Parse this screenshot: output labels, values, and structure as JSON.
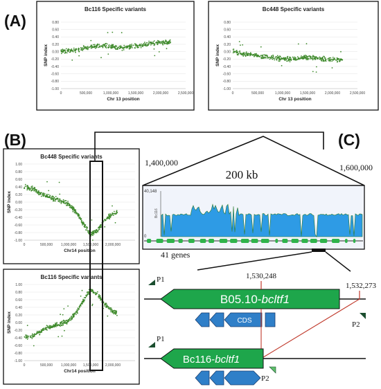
{
  "panel_labels": {
    "a": "(A)",
    "b": "(B)",
    "c": "(C)"
  },
  "chart_data": [
    {
      "id": "a1",
      "type": "scatter",
      "title": "Bc116 Specific variants",
      "xlabel": "Chr 13 position",
      "ylabel": "SNP index",
      "xlim": [
        0,
        2500000
      ],
      "ylim": [
        -1.0,
        0.8
      ],
      "xticks": [
        "0",
        "500,000",
        "1,000,000",
        "1,500,000",
        "2,000,000",
        "2,500,000"
      ],
      "yticks": [
        "0.80",
        "0.60",
        "0.40",
        "0.20",
        "0.00",
        "-0.20",
        "-0.40",
        "-0.60",
        "-0.80",
        "-1.00"
      ],
      "grid": true,
      "color": "#3f8a2c",
      "trend": [
        [
          0,
          0.0
        ],
        [
          100000,
          0.02
        ],
        [
          300000,
          0.05
        ],
        [
          600000,
          0.13
        ],
        [
          900000,
          0.16
        ],
        [
          1200000,
          0.1
        ],
        [
          1500000,
          0.15
        ],
        [
          1750000,
          0.22
        ],
        [
          2000000,
          0.25
        ],
        [
          2200000,
          0.25
        ]
      ]
    },
    {
      "id": "a2",
      "type": "scatter",
      "title": "Bc448 Specific variants",
      "xlabel": "Chr 13 position",
      "ylabel": "SNP index",
      "xlim": [
        0,
        2500000
      ],
      "ylim": [
        -1.0,
        0.8
      ],
      "xticks": [
        "0",
        "500,000",
        "1,000,000",
        "1,500,000",
        "2,000,000",
        "2,500,000"
      ],
      "yticks": [
        "0.80",
        "0.60",
        "0.40",
        "0.20",
        "0.00",
        "-0.20",
        "-0.40",
        "-0.60",
        "-0.80",
        "-1.00"
      ],
      "grid": true,
      "color": "#3f8a2c",
      "trend": [
        [
          0,
          0.0
        ],
        [
          200000,
          -0.05
        ],
        [
          500000,
          -0.12
        ],
        [
          900000,
          -0.18
        ],
        [
          1200000,
          -0.2
        ],
        [
          1500000,
          -0.15
        ],
        [
          1800000,
          -0.2
        ],
        [
          2000000,
          -0.22
        ],
        [
          2200000,
          -0.22
        ]
      ]
    },
    {
      "id": "b1",
      "type": "scatter",
      "title": "Bc448 Specific variants",
      "xlabel": "Chr14 position",
      "ylabel": "SNP index",
      "xlim": [
        0,
        2500000
      ],
      "ylim": [
        -1.0,
        1.0
      ],
      "xticks": [
        "0",
        "500,000",
        "1,000,000",
        "1,500,000",
        "2,000,000"
      ],
      "yticks": [
        "1.00",
        "0.80",
        "0.60",
        "0.40",
        "0.20",
        "0.00",
        "-0.20",
        "-0.40",
        "-0.60",
        "-0.80",
        "-1.00"
      ],
      "grid": true,
      "color": "#3f8a2c",
      "trend": [
        [
          0,
          0.4
        ],
        [
          200000,
          0.35
        ],
        [
          500000,
          0.15
        ],
        [
          800000,
          0.05
        ],
        [
          1000000,
          -0.05
        ],
        [
          1200000,
          -0.3
        ],
        [
          1400000,
          -0.7
        ],
        [
          1500000,
          -0.85
        ],
        [
          1650000,
          -0.75
        ],
        [
          1800000,
          -0.5
        ],
        [
          2000000,
          -0.3
        ],
        [
          2100000,
          -0.25
        ]
      ]
    },
    {
      "id": "b2",
      "type": "scatter",
      "title": "Bc116 Specific variants",
      "xlabel": "Chr14 position",
      "ylabel": "SNP index",
      "xlim": [
        0,
        2500000
      ],
      "ylim": [
        -1.0,
        1.0
      ],
      "xticks": [
        "0",
        "500,000",
        "1,000,000",
        "1,500,000",
        "2,000,000"
      ],
      "yticks": [
        "1.00",
        "0.80",
        "0.60",
        "0.40",
        "0.20",
        "0.00",
        "-0.20",
        "-0.40",
        "-0.60",
        "-0.80",
        "-1.00"
      ],
      "grid": true,
      "color": "#3f8a2c",
      "trend": [
        [
          0,
          -0.4
        ],
        [
          200000,
          -0.35
        ],
        [
          500000,
          -0.15
        ],
        [
          800000,
          -0.05
        ],
        [
          1000000,
          0.05
        ],
        [
          1200000,
          0.3
        ],
        [
          1400000,
          0.7
        ],
        [
          1500000,
          0.85
        ],
        [
          1650000,
          0.75
        ],
        [
          1800000,
          0.5
        ],
        [
          2000000,
          0.3
        ],
        [
          2100000,
          0.25
        ]
      ]
    }
  ],
  "panel_c": {
    "left_coord": "1,400,000",
    "right_coord": "1,600,000",
    "span_label": "200 kb",
    "coverage_max": "40,148",
    "coverage_min": "0",
    "coverage_track_label": "Bc116",
    "genes_count_label": "41 genes",
    "coord_left_gene": "1,530,248",
    "coord_right_gene": "1,532,273",
    "gene_top_label": "B05.10-",
    "gene_top_italic": "bcltf1",
    "gene_bottom_label": "Bc116-",
    "gene_bottom_italic": "bcltf1",
    "cds_label": "CDS",
    "primer1": "P1",
    "primer2": "P2",
    "colors": {
      "gene": "#1ea64b",
      "exon": "#2f7fc8",
      "coverage": "#2e9be5",
      "mutation_line": "#c0392b",
      "primer": "#1a4d2e"
    }
  }
}
